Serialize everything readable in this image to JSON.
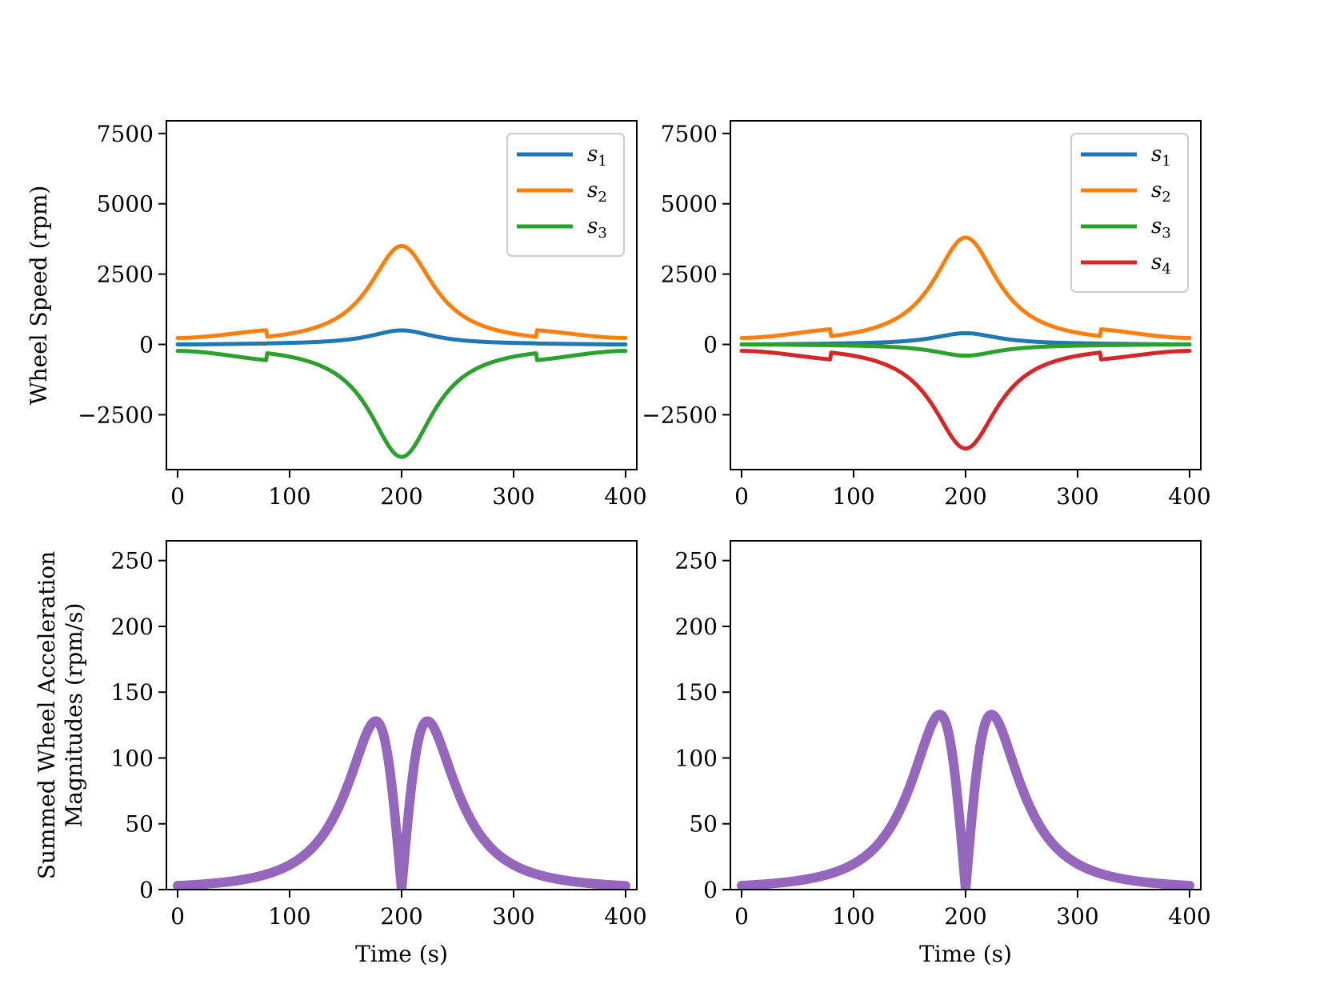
{
  "chart_data": [
    {
      "id": "top-left",
      "type": "line",
      "xlabel": "",
      "ylabel": "Wheel Speed (rpm)",
      "xlim": [
        -10,
        410
      ],
      "ylim": [
        -4450,
        7950
      ],
      "xticks": [
        0,
        100,
        200,
        300,
        400
      ],
      "yticks": [
        -2500,
        0,
        2500,
        5000,
        7500
      ],
      "xtick_labels": [
        "0",
        "100",
        "200",
        "300",
        "400"
      ],
      "ytick_labels": [
        "−2500",
        "0",
        "2500",
        "5000",
        "7500"
      ],
      "legend_position": "top-right",
      "series": [
        {
          "name": "s",
          "sub": "1",
          "color": "#1f77b4",
          "peak": 500,
          "width": 35,
          "offset": 0,
          "x": [
            0,
            100,
            150,
            175,
            200,
            225,
            250,
            300,
            400
          ],
          "y": [
            0,
            35,
            120,
            270,
            500,
            270,
            120,
            35,
            0
          ]
        },
        {
          "name": "s",
          "sub": "2",
          "color": "#ff7f0e",
          "peak": 3500,
          "width": 35,
          "offset": 0,
          "x": [
            0,
            100,
            150,
            175,
            200,
            225,
            250,
            300,
            400
          ],
          "y": [
            230,
            540,
            1400,
            2350,
            3500,
            2350,
            1400,
            540,
            230
          ]
        },
        {
          "name": "s",
          "sub": "3",
          "color": "#2ca02c",
          "peak": -4000,
          "width": 35,
          "offset": 0,
          "x": [
            0,
            100,
            150,
            175,
            200,
            225,
            250,
            300,
            400
          ],
          "y": [
            -230,
            -600,
            -1600,
            -2700,
            -4000,
            -2700,
            -1600,
            -600,
            -230
          ]
        }
      ]
    },
    {
      "id": "top-right",
      "type": "line",
      "xlabel": "",
      "ylabel": "",
      "xlim": [
        -10,
        410
      ],
      "ylim": [
        -4450,
        7950
      ],
      "xticks": [
        0,
        100,
        200,
        300,
        400
      ],
      "yticks": [
        -2500,
        0,
        2500,
        5000,
        7500
      ],
      "xtick_labels": [
        "0",
        "100",
        "200",
        "300",
        "400"
      ],
      "ytick_labels": [
        "−2500",
        "0",
        "2500",
        "5000",
        "7500"
      ],
      "legend_position": "top-right",
      "series": [
        {
          "name": "s",
          "sub": "1",
          "color": "#1f77b4",
          "peak": 400,
          "width": 35,
          "offset": 0,
          "x": [
            0,
            100,
            150,
            175,
            200,
            225,
            250,
            300,
            400
          ],
          "y": [
            0,
            30,
            100,
            220,
            400,
            220,
            100,
            30,
            0
          ]
        },
        {
          "name": "s",
          "sub": "2",
          "color": "#ff7f0e",
          "peak": 3800,
          "width": 35,
          "offset": 0,
          "x": [
            0,
            100,
            150,
            175,
            200,
            225,
            250,
            300,
            400
          ],
          "y": [
            230,
            580,
            1500,
            2550,
            3800,
            2550,
            1500,
            580,
            230
          ]
        },
        {
          "name": "s",
          "sub": "3",
          "color": "#2ca02c",
          "peak": -400,
          "width": 35,
          "offset": 0,
          "x": [
            0,
            100,
            150,
            175,
            200,
            225,
            250,
            300,
            400
          ],
          "y": [
            0,
            -30,
            -100,
            -220,
            -400,
            -220,
            -100,
            -30,
            0
          ]
        },
        {
          "name": "s",
          "sub": "4",
          "color": "#d62728",
          "peak": -3700,
          "width": 35,
          "offset": 0,
          "x": [
            0,
            100,
            150,
            175,
            200,
            225,
            250,
            300,
            400
          ],
          "y": [
            -230,
            -570,
            -1480,
            -2500,
            -3700,
            -2500,
            -1480,
            -570,
            -230
          ]
        }
      ]
    },
    {
      "id": "bottom-left",
      "type": "line",
      "xlabel": "Time (s)",
      "ylabel": "Summed Wheel Acceleration",
      "ylabel2": "Magnitudes (rpm/s)",
      "xlim": [
        -10,
        410
      ],
      "ylim": [
        0,
        265
      ],
      "xticks": [
        0,
        100,
        200,
        300,
        400
      ],
      "yticks": [
        0,
        50,
        100,
        150,
        200,
        250
      ],
      "xtick_labels": [
        "0",
        "100",
        "200",
        "300",
        "400"
      ],
      "ytick_labels": [
        "0",
        "50",
        "100",
        "150",
        "200",
        "250"
      ],
      "band_color": "#9467bd",
      "band_thickness": 12,
      "series": [
        {
          "name": "",
          "x": [
            0,
            100,
            150,
            177,
            190,
            200,
            210,
            223,
            250,
            300,
            400
          ],
          "y": [
            3,
            18,
            75,
            128,
            95,
            0,
            95,
            128,
            75,
            18,
            3
          ]
        }
      ]
    },
    {
      "id": "bottom-right",
      "type": "line",
      "xlabel": "Time (s)",
      "ylabel": "",
      "xlim": [
        -10,
        410
      ],
      "ylim": [
        0,
        265
      ],
      "xticks": [
        0,
        100,
        200,
        300,
        400
      ],
      "yticks": [
        0,
        50,
        100,
        150,
        200,
        250
      ],
      "xtick_labels": [
        "0",
        "100",
        "200",
        "300",
        "400"
      ],
      "ytick_labels": [
        "0",
        "50",
        "100",
        "150",
        "200",
        "250"
      ],
      "band_color": "#9467bd",
      "band_thickness": 12,
      "series": [
        {
          "name": "",
          "x": [
            0,
            100,
            150,
            177,
            190,
            200,
            210,
            223,
            250,
            300,
            400
          ],
          "y": [
            3,
            19,
            78,
            133,
            98,
            0,
            98,
            133,
            78,
            19,
            3
          ]
        }
      ]
    }
  ]
}
